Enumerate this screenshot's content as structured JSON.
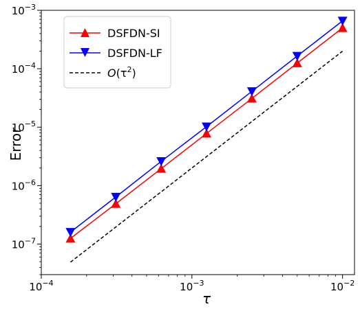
{
  "chart_data": {
    "type": "scatter",
    "x_scale": "log",
    "y_scale": "log",
    "xlabel": "τ",
    "ylabel": "Error",
    "xlim": [
      0.0001,
      0.012
    ],
    "ylim": [
      3e-08,
      0.001
    ],
    "legend_position": "top-left",
    "grid": false,
    "x_ticks": [
      {
        "value": 0.0001,
        "base": "10",
        "exp": "−4"
      },
      {
        "value": 0.001,
        "base": "10",
        "exp": "−3"
      },
      {
        "value": 0.01,
        "base": "10",
        "exp": "−2"
      }
    ],
    "y_ticks": [
      {
        "value": 1e-07,
        "base": "10",
        "exp": "−7"
      },
      {
        "value": 1e-06,
        "base": "10",
        "exp": "−6"
      },
      {
        "value": 1e-05,
        "base": "10",
        "exp": "−5"
      },
      {
        "value": 0.0001,
        "base": "10",
        "exp": "−4"
      },
      {
        "value": 0.001,
        "base": "10",
        "exp": "−3"
      }
    ],
    "x": [
      0.00015625,
      0.0003125,
      0.000625,
      0.00125,
      0.0025,
      0.005,
      0.01
    ],
    "series": [
      {
        "name": "DSFDN-SI",
        "color": "#ff0000",
        "line": "solid",
        "marker": "triangle-up",
        "values": [
          1.25e-07,
          4.9e-07,
          1.95e-06,
          7.8e-06,
          3.1e-05,
          0.000125,
          0.0005
        ]
      },
      {
        "name": "DSFDN-LF",
        "color": "#0000ff",
        "line": "solid",
        "marker": "triangle-down",
        "values": [
          1.6e-07,
          6.4e-07,
          2.6e-06,
          1.02e-05,
          4.1e-05,
          0.000165,
          0.00066
        ]
      },
      {
        "name": "O(τ2)",
        "name_parts": {
          "prefix": "O",
          "open": "(τ",
          "sup": "2",
          "close": ")"
        },
        "color": "#000000",
        "line": "dashed",
        "marker": "none",
        "values": [
          4.9e-08,
          0.0002
        ]
      }
    ],
    "reference_x": [
      0.00015625,
      0.01
    ]
  }
}
